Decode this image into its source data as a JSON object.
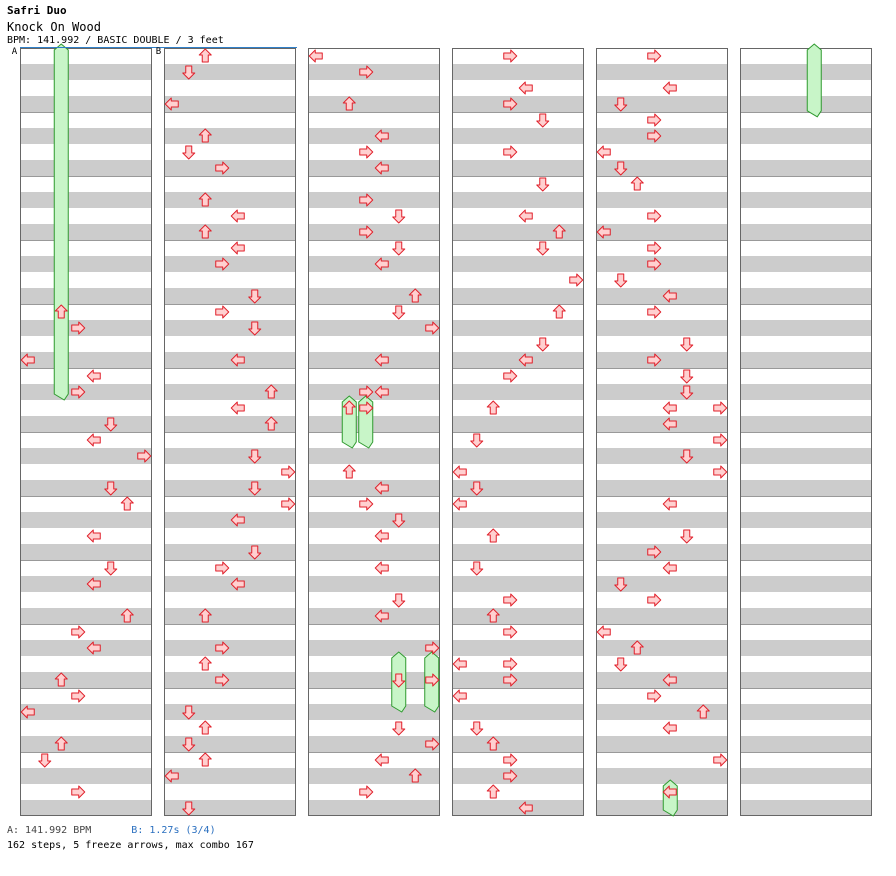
{
  "header": {
    "artist": "Safri Duo",
    "title": "Knock On Wood",
    "info": "BPM: 141.992 / BASIC DOUBLE / 3 feet"
  },
  "markers": {
    "a": "A",
    "b": "B"
  },
  "footer": {
    "bpm_a": "A: 141.992 BPM",
    "bpm_b": "B: 1.27s (3/4)",
    "stats": "162 steps, 5 freeze arrows, max combo 167"
  },
  "colors": {
    "stripe": "#cccccc",
    "arrow_fill": "#ffd0d0",
    "arrow_stroke": "#e01f2a",
    "freeze_fill": "#c8f5c8",
    "freeze_stroke": "#2f9a2f",
    "border": "#666666",
    "accent": "#2f80c9"
  },
  "chart_data": {
    "type": "step-chart",
    "columns": 6,
    "lanes": 8,
    "lane_directions": [
      "left",
      "down",
      "up",
      "right",
      "left",
      "down",
      "up",
      "right"
    ],
    "rows_per_column": 48,
    "notes": [
      [
        [
          16,
          2
        ],
        [
          17,
          3
        ],
        [
          19,
          0
        ],
        [
          20,
          4
        ],
        [
          21,
          3
        ],
        [
          23,
          5
        ],
        [
          24,
          4
        ],
        [
          25,
          7
        ],
        [
          27,
          5
        ],
        [
          28,
          6
        ],
        [
          30,
          4
        ],
        [
          32,
          5
        ],
        [
          33,
          4
        ],
        [
          35,
          6
        ],
        [
          36,
          3
        ],
        [
          37,
          4
        ],
        [
          39,
          2
        ],
        [
          40,
          3
        ],
        [
          41,
          0
        ],
        [
          43,
          2
        ],
        [
          44,
          1
        ],
        [
          46,
          3
        ]
      ],
      [
        [
          0,
          2
        ],
        [
          1,
          1
        ],
        [
          3,
          0
        ],
        [
          5,
          2
        ],
        [
          6,
          1
        ],
        [
          7,
          3
        ],
        [
          9,
          2
        ],
        [
          10,
          4
        ],
        [
          11,
          2
        ],
        [
          12,
          4
        ],
        [
          13,
          3
        ],
        [
          15,
          5
        ],
        [
          16,
          3
        ],
        [
          17,
          5
        ],
        [
          19,
          4
        ],
        [
          21,
          6
        ],
        [
          22,
          4
        ],
        [
          23,
          6
        ],
        [
          25,
          5
        ],
        [
          26,
          7
        ],
        [
          27,
          5
        ],
        [
          28,
          7
        ],
        [
          29,
          4
        ],
        [
          31,
          5
        ],
        [
          32,
          3
        ],
        [
          33,
          4
        ],
        [
          35,
          2
        ],
        [
          37,
          3
        ],
        [
          38,
          2
        ],
        [
          39,
          3
        ],
        [
          41,
          1
        ],
        [
          42,
          2
        ],
        [
          43,
          1
        ],
        [
          44,
          2
        ],
        [
          45,
          0
        ],
        [
          47,
          1
        ]
      ],
      [
        [
          0,
          0
        ],
        [
          1,
          3
        ],
        [
          3,
          2
        ],
        [
          5,
          4
        ],
        [
          6,
          3
        ],
        [
          7,
          4
        ],
        [
          9,
          3
        ],
        [
          10,
          5
        ],
        [
          11,
          3
        ],
        [
          12,
          5
        ],
        [
          13,
          4
        ],
        [
          15,
          6
        ],
        [
          16,
          5
        ],
        [
          17,
          7
        ],
        [
          19,
          4
        ],
        [
          21,
          3
        ],
        [
          21,
          4
        ],
        [
          22,
          2
        ],
        [
          22,
          3
        ],
        [
          26,
          2
        ],
        [
          27,
          4
        ],
        [
          28,
          3
        ],
        [
          29,
          5
        ],
        [
          30,
          4
        ],
        [
          32,
          4
        ],
        [
          34,
          5
        ],
        [
          35,
          4
        ],
        [
          37,
          7
        ],
        [
          39,
          5
        ],
        [
          39,
          7
        ],
        [
          42,
          5
        ],
        [
          43,
          7
        ],
        [
          44,
          4
        ],
        [
          45,
          6
        ],
        [
          46,
          3
        ]
      ],
      [
        [
          0,
          3
        ],
        [
          2,
          4
        ],
        [
          3,
          3
        ],
        [
          4,
          5
        ],
        [
          6,
          3
        ],
        [
          8,
          5
        ],
        [
          10,
          4
        ],
        [
          11,
          6
        ],
        [
          12,
          5
        ],
        [
          14,
          7
        ],
        [
          16,
          6
        ],
        [
          18,
          5
        ],
        [
          19,
          4
        ],
        [
          20,
          3
        ],
        [
          22,
          2
        ],
        [
          24,
          1
        ],
        [
          26,
          0
        ],
        [
          27,
          1
        ],
        [
          28,
          0
        ],
        [
          30,
          2
        ],
        [
          32,
          1
        ],
        [
          34,
          3
        ],
        [
          35,
          2
        ],
        [
          36,
          3
        ],
        [
          38,
          0
        ],
        [
          38,
          3
        ],
        [
          39,
          3
        ],
        [
          40,
          0
        ],
        [
          42,
          1
        ],
        [
          43,
          2
        ],
        [
          44,
          3
        ],
        [
          45,
          3
        ],
        [
          46,
          2
        ],
        [
          47,
          4
        ]
      ],
      [
        [
          0,
          3
        ],
        [
          2,
          4
        ],
        [
          3,
          1
        ],
        [
          4,
          3
        ],
        [
          5,
          3
        ],
        [
          6,
          0
        ],
        [
          7,
          1
        ],
        [
          8,
          2
        ],
        [
          10,
          3
        ],
        [
          11,
          0
        ],
        [
          12,
          3
        ],
        [
          13,
          3
        ],
        [
          14,
          1
        ],
        [
          15,
          4
        ],
        [
          16,
          3
        ],
        [
          18,
          5
        ],
        [
          19,
          3
        ],
        [
          20,
          5
        ],
        [
          21,
          5
        ],
        [
          22,
          4
        ],
        [
          22,
          7
        ],
        [
          23,
          4
        ],
        [
          24,
          7
        ],
        [
          25,
          5
        ],
        [
          26,
          7
        ],
        [
          28,
          4
        ],
        [
          30,
          5
        ],
        [
          31,
          3
        ],
        [
          32,
          4
        ],
        [
          33,
          1
        ],
        [
          34,
          3
        ],
        [
          36,
          0
        ],
        [
          37,
          2
        ],
        [
          38,
          1
        ],
        [
          39,
          4
        ],
        [
          40,
          3
        ],
        [
          41,
          6
        ],
        [
          42,
          4
        ],
        [
          44,
          7
        ],
        [
          46,
          4
        ]
      ],
      []
    ],
    "freezes": [
      [
        0,
        2,
        0.0,
        22.0
      ],
      [
        2,
        2,
        22.0,
        25.0
      ],
      [
        2,
        3,
        22.0,
        25.0
      ],
      [
        2,
        5,
        38.0,
        41.5
      ],
      [
        2,
        7,
        38.0,
        41.5
      ],
      [
        4,
        4,
        46.0,
        48.0
      ],
      [
        5,
        4,
        0.0,
        4.3
      ]
    ]
  }
}
